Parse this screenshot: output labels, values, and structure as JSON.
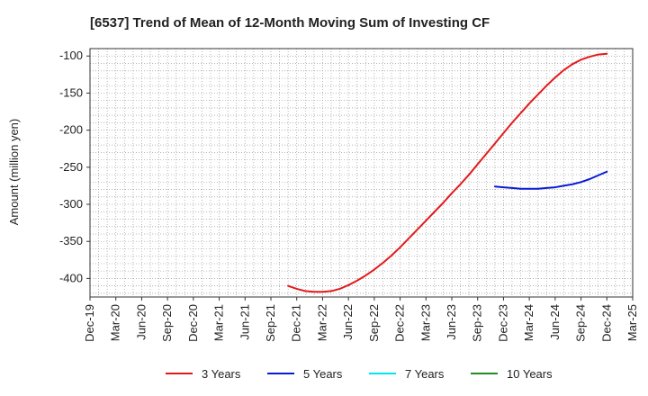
{
  "chart_data": {
    "type": "line",
    "title": "[6537]  Trend of Mean of 12-Month Moving Sum of Investing CF",
    "ylabel": "Amount (million yen)",
    "xlabel": "",
    "ylim": [
      -425,
      -90
    ],
    "yticks": [
      -100,
      -150,
      -200,
      -250,
      -300,
      -350,
      -400
    ],
    "x_ticks": [
      "Dec-19",
      "Mar-20",
      "Jun-20",
      "Sep-20",
      "Dec-20",
      "Mar-21",
      "Jun-21",
      "Sep-21",
      "Dec-21",
      "Mar-22",
      "Jun-22",
      "Sep-22",
      "Dec-22",
      "Mar-23",
      "Jun-23",
      "Sep-23",
      "Dec-23",
      "Mar-24",
      "Jun-24",
      "Sep-24",
      "Dec-24",
      "Mar-25"
    ],
    "grid": true,
    "legend_position": "bottom",
    "series": [
      {
        "name": "3 Years",
        "color": "#e31a1c",
        "points": [
          [
            "Nov-21",
            -410
          ],
          [
            "Dec-21",
            -414
          ],
          [
            "Jan-22",
            -417
          ],
          [
            "Feb-22",
            -418
          ],
          [
            "Mar-22",
            -418
          ],
          [
            "Apr-22",
            -417
          ],
          [
            "May-22",
            -414
          ],
          [
            "Jun-22",
            -409
          ],
          [
            "Jul-22",
            -403
          ],
          [
            "Aug-22",
            -396
          ],
          [
            "Sep-22",
            -388
          ],
          [
            "Oct-22",
            -379
          ],
          [
            "Nov-22",
            -369
          ],
          [
            "Dec-22",
            -358
          ],
          [
            "Jan-23",
            -346
          ],
          [
            "Feb-23",
            -334
          ],
          [
            "Mar-23",
            -322
          ],
          [
            "Apr-23",
            -310
          ],
          [
            "May-23",
            -298
          ],
          [
            "Jun-23",
            -285
          ],
          [
            "Jul-23",
            -273
          ],
          [
            "Aug-23",
            -260
          ],
          [
            "Sep-23",
            -246
          ],
          [
            "Oct-23",
            -232
          ],
          [
            "Nov-23",
            -218
          ],
          [
            "Dec-23",
            -204
          ],
          [
            "Jan-24",
            -190
          ],
          [
            "Feb-24",
            -177
          ],
          [
            "Mar-24",
            -164
          ],
          [
            "Apr-24",
            -152
          ],
          [
            "May-24",
            -140
          ],
          [
            "Jun-24",
            -129
          ],
          [
            "Jul-24",
            -119
          ],
          [
            "Aug-24",
            -111
          ],
          [
            "Sep-24",
            -105
          ],
          [
            "Oct-24",
            -101
          ],
          [
            "Nov-24",
            -98
          ],
          [
            "Dec-24",
            -97
          ]
        ]
      },
      {
        "name": "5 Years",
        "color": "#0a1ad6",
        "points": [
          [
            "Nov-23",
            -276
          ],
          [
            "Dec-23",
            -277
          ],
          [
            "Jan-24",
            -278
          ],
          [
            "Feb-24",
            -279
          ],
          [
            "Mar-24",
            -279
          ],
          [
            "Apr-24",
            -279
          ],
          [
            "May-24",
            -278
          ],
          [
            "Jun-24",
            -277
          ],
          [
            "Jul-24",
            -275
          ],
          [
            "Aug-24",
            -273
          ],
          [
            "Sep-24",
            -270
          ],
          [
            "Oct-24",
            -266
          ],
          [
            "Nov-24",
            -261
          ],
          [
            "Dec-24",
            -256
          ]
        ]
      },
      {
        "name": "7 Years",
        "color": "#00e5ee",
        "points": []
      },
      {
        "name": "10 Years",
        "color": "#228b22",
        "points": []
      }
    ]
  }
}
